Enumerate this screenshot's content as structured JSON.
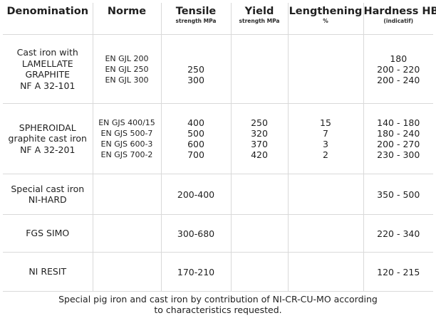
{
  "headers": {
    "denomination": {
      "main": "Denomination",
      "sub": ""
    },
    "norme": {
      "main": "Norme",
      "sub": ""
    },
    "tensile": {
      "main": "Tensile",
      "sub": "strength MPa"
    },
    "yield": {
      "main": "Yield",
      "sub": "strength MPa"
    },
    "lengthening": {
      "main": "Lengthening",
      "sub": "%"
    },
    "hardness": {
      "main": "Hardness HB",
      "sub": "(indicatif)"
    }
  },
  "rows": [
    {
      "id": "gjl",
      "denomination": [
        "Cast iron with",
        "LAMELLATE",
        "GRAPHITE",
        "NF A 32-101"
      ],
      "norme": [
        "EN GJL 200",
        "EN GJL 250",
        "EN GJL 300"
      ],
      "tensile": [
        "",
        "250",
        "300"
      ],
      "yield": [],
      "lengthening": [],
      "hardness": [
        "180",
        "200 - 220",
        "200 - 240"
      ]
    },
    {
      "id": "gjs",
      "denomination": [
        "SPHEROIDAL",
        "graphite cast iron",
        "NF A 32-201"
      ],
      "norme": [
        "EN GJS 400/15",
        "EN GJS 500-7",
        "EN GJS 600-3",
        "EN GJS 700-2"
      ],
      "tensile": [
        "400",
        "500",
        "600",
        "700"
      ],
      "yield": [
        "250",
        "320",
        "370",
        "420"
      ],
      "lengthening": [
        "15",
        "7",
        "3",
        "2"
      ],
      "hardness": [
        "140 - 180",
        "180 - 240",
        "200 - 270",
        "230 - 300"
      ]
    },
    {
      "id": "nihard",
      "denomination": [
        "Special cast iron",
        "NI-HARD"
      ],
      "norme": [],
      "tensile": [
        "200-400"
      ],
      "yield": [],
      "lengthening": [],
      "hardness": [
        "350 - 500"
      ]
    },
    {
      "id": "simo",
      "denomination": [
        "FGS SIMO"
      ],
      "norme": [],
      "tensile": [
        "300-680"
      ],
      "yield": [],
      "lengthening": [],
      "hardness": [
        "220 - 340"
      ]
    },
    {
      "id": "resit",
      "denomination": [
        "NI RESIT"
      ],
      "norme": [],
      "tensile": [
        "170-210"
      ],
      "yield": [],
      "lengthening": [],
      "hardness": [
        "120 - 215"
      ]
    }
  ],
  "footnote": {
    "line1": "Special pig iron and cast iron by contribution of NI-CR-CU-MO according",
    "line2": "to characteristics requested."
  }
}
